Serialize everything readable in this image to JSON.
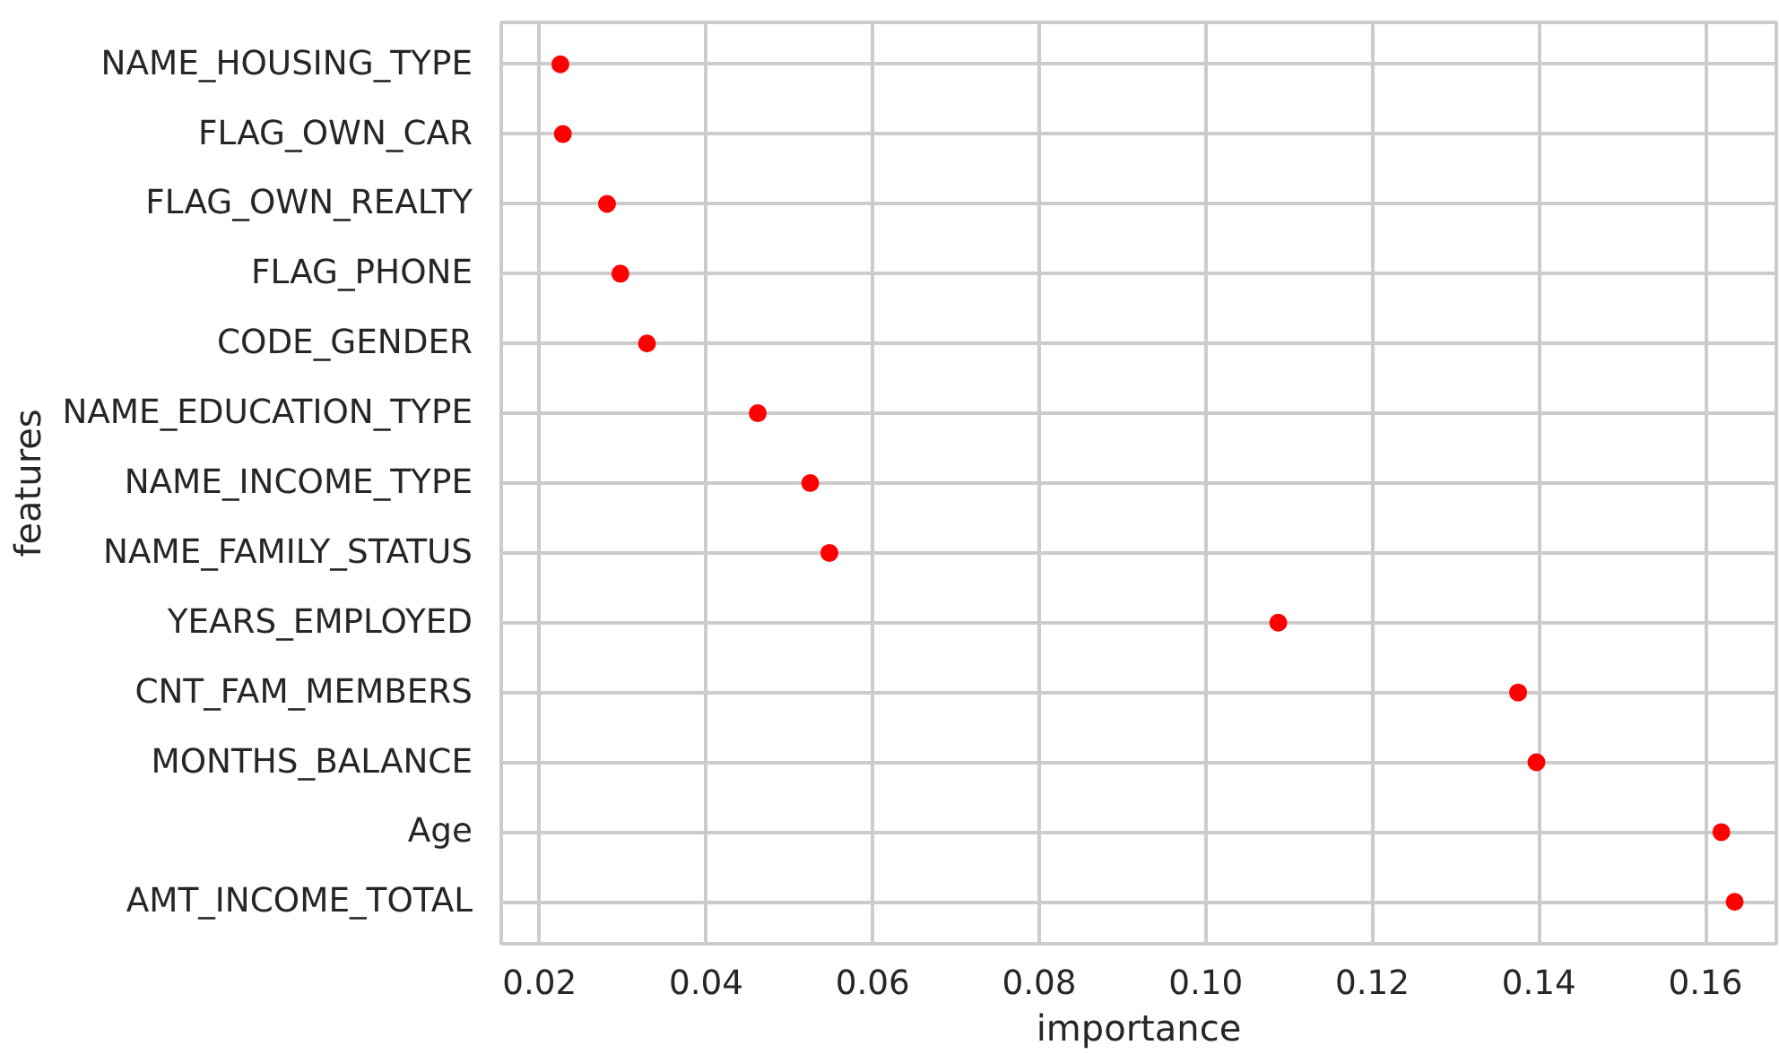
{
  "chart_data": {
    "type": "scatter",
    "xlabel": "importance",
    "ylabel": "features",
    "categories": [
      "NAME_HOUSING_TYPE",
      "FLAG_OWN_CAR",
      "FLAG_OWN_REALTY",
      "FLAG_PHONE",
      "CODE_GENDER",
      "NAME_EDUCATION_TYPE",
      "NAME_INCOME_TYPE",
      "NAME_FAMILY_STATUS",
      "YEARS_EMPLOYED",
      "CNT_FAM_MEMBERS",
      "MONTHS_BALANCE",
      "Age",
      "AMT_INCOME_TOTAL"
    ],
    "values": [
      0.0225,
      0.0228,
      0.0281,
      0.0297,
      0.0329,
      0.0462,
      0.0525,
      0.0548,
      0.1087,
      0.1375,
      0.1397,
      0.1619,
      0.1635
    ],
    "color": "#ff0000",
    "orientation": "horizontal",
    "marker": "circle",
    "grid": true,
    "xlim": [
      0.0154,
      0.1685
    ],
    "xticks": [
      0.02,
      0.04,
      0.06,
      0.08,
      {
        "value": 0.1,
        "label": "0.10"
      },
      0.12,
      0.14,
      0.16
    ]
  }
}
